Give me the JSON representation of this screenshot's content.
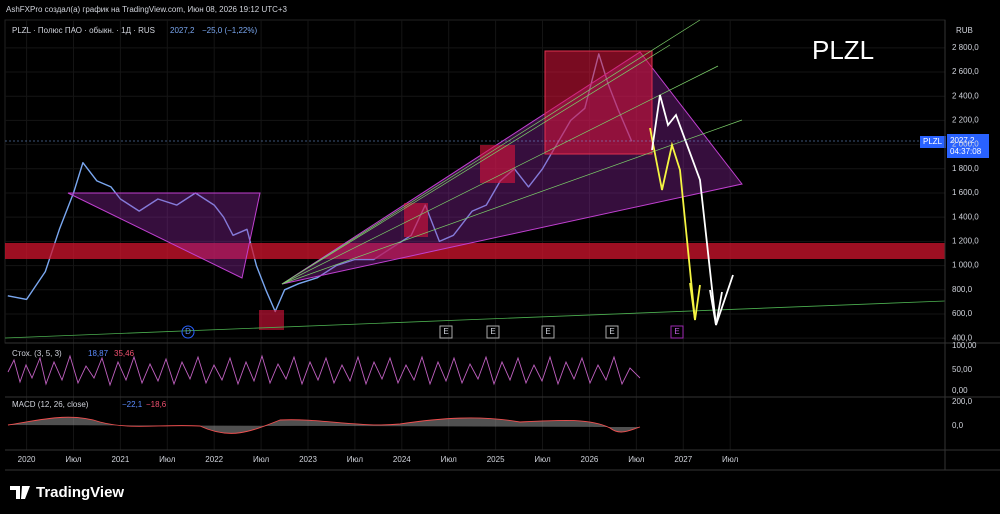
{
  "header": {
    "author_line": "AshFXPro создал(а) график на TradingView.com, Июн 08, 2026 19:12 UTC+3",
    "symbol_line": "PLZL · Полюс ПАО · обыкн. · 1Д · RUS",
    "last_price": "2027,2",
    "change": "−25,0 (−1,22%)",
    "big_label": "PLZL",
    "currency": "RUB"
  },
  "price_tag": {
    "symbol": "PLZL",
    "price": "2027,2",
    "countdown": "04:37:08"
  },
  "panes": {
    "stoch": {
      "title": "Стох. (3, 5, 3)",
      "k": "18,87",
      "d": "35,46",
      "ticks": [
        "100,00",
        "50,00",
        "0,00"
      ]
    },
    "macd": {
      "title": "MACD (12, 26, close)",
      "macd": "−22,1",
      "signal": "−18,6",
      "ticks": [
        "200,0",
        "0,0"
      ]
    }
  },
  "events": [
    "D",
    "E",
    "E",
    "E",
    "E",
    "E"
  ],
  "footer": {
    "brand": "TradingView"
  },
  "chart_data": {
    "type": "line",
    "x": [
      2019.8,
      2020.0,
      2020.2,
      2020.35,
      2020.5,
      2020.6,
      2020.75,
      2020.9,
      2021.0,
      2021.2,
      2021.4,
      2021.6,
      2021.8,
      2022.0,
      2022.1,
      2022.2,
      2022.35,
      2022.45,
      2022.55,
      2022.65,
      2022.75,
      2022.9,
      2023.1,
      2023.3,
      2023.5,
      2023.7,
      2023.9,
      2024.1,
      2024.25,
      2024.4,
      2024.55,
      2024.75,
      2024.9,
      2025.05,
      2025.2,
      2025.35,
      2025.5,
      2025.65,
      2025.8,
      2025.95,
      2026.1,
      2026.2,
      2026.3,
      2026.45
    ],
    "series": [
      {
        "name": "PLZL",
        "color": "#7aa7f0",
        "values": [
          750,
          720,
          950,
          1300,
          1600,
          1850,
          1700,
          1650,
          1550,
          1450,
          1550,
          1500,
          1600,
          1500,
          1400,
          1250,
          1300,
          1000,
          800,
          620,
          800,
          850,
          900,
          1000,
          1050,
          1050,
          1150,
          1250,
          1500,
          1200,
          1250,
          1450,
          1500,
          1700,
          1800,
          1650,
          1800,
          2000,
          2200,
          2300,
          2750,
          2500,
          2300,
          2027
        ]
      }
    ],
    "xlim": [
      2019.77,
      2029.79
    ],
    "xticks": [
      {
        "value": 2020,
        "label": "2020"
      },
      {
        "value": 2020.5,
        "label": "Июл"
      },
      {
        "value": 2021,
        "label": "2021"
      },
      {
        "value": 2021.5,
        "label": "Июл"
      },
      {
        "value": 2022,
        "label": "2022"
      },
      {
        "value": 2022.5,
        "label": "Июл"
      },
      {
        "value": 2023,
        "label": "2023"
      },
      {
        "value": 2023.5,
        "label": "Июл"
      },
      {
        "value": 2024,
        "label": "2024"
      },
      {
        "value": 2024.5,
        "label": "Июл"
      },
      {
        "value": 2025,
        "label": "2025"
      },
      {
        "value": 2025.5,
        "label": "Июл"
      },
      {
        "value": 2026,
        "label": "2026"
      },
      {
        "value": 2026.5,
        "label": "Июл"
      },
      {
        "value": 2027,
        "label": "2027"
      },
      {
        "value": 2027.5,
        "label": "Июл"
      }
    ],
    "ylim": [
      360,
      3030
    ],
    "yticks": [
      {
        "value": 400,
        "label": "400,0"
      },
      {
        "value": 600,
        "label": "600,0"
      },
      {
        "value": 800,
        "label": "800,0"
      },
      {
        "value": 1000,
        "label": "1 000,0"
      },
      {
        "value": 1200,
        "label": "1 200,0"
      },
      {
        "value": 1400,
        "label": "1 400,0"
      },
      {
        "value": 1600,
        "label": "1 600,0"
      },
      {
        "value": 1800,
        "label": "1 800,0"
      },
      {
        "value": 2000,
        "label": "2 000,0"
      },
      {
        "value": 2200,
        "label": "2 200,0"
      },
      {
        "value": 2400,
        "label": "2 400,0"
      },
      {
        "value": 2600,
        "label": "2 600,0"
      },
      {
        "value": 2800,
        "label": "2 800,0"
      }
    ],
    "grid": true
  }
}
